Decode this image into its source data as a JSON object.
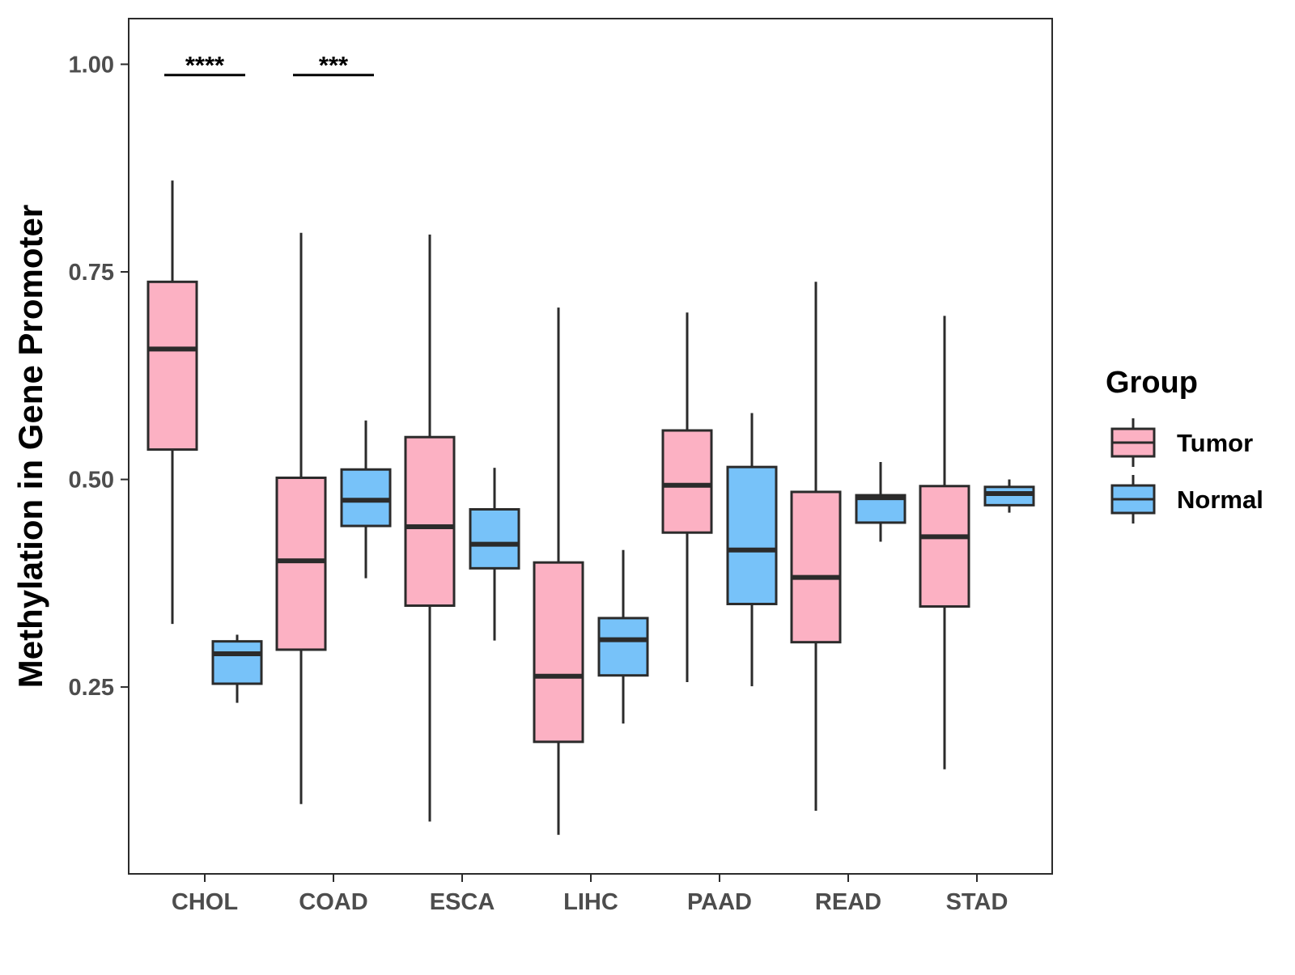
{
  "chart_data": {
    "type": "boxplot",
    "title": "",
    "xlabel": "",
    "ylabel": "Methylation in Gene Promoter",
    "ylim": [
      0.025,
      1.055
    ],
    "yticks": [
      0.25,
      0.5,
      0.75,
      1.0
    ],
    "ytick_labels": [
      "0.25",
      "0.50",
      "0.75",
      "1.00"
    ],
    "grid": false,
    "categories": [
      "CHOL",
      "COAD",
      "ESCA",
      "LIHC",
      "PAAD",
      "READ",
      "STAD"
    ],
    "legend": {
      "title": "Group",
      "placement": "right",
      "entries": [
        {
          "name": "Tumor",
          "color": "#fcb1c3"
        },
        {
          "name": "Normal",
          "color": "#77c2f9"
        }
      ]
    },
    "series": [
      {
        "name": "Tumor",
        "color": "#fcb1c3",
        "boxes": [
          {
            "category": "CHOL",
            "min": 0.326,
            "q1": 0.536,
            "median": 0.657,
            "q3": 0.738,
            "max": 0.86
          },
          {
            "category": "COAD",
            "min": 0.109,
            "q1": 0.295,
            "median": 0.402,
            "q3": 0.502,
            "max": 0.797
          },
          {
            "category": "ESCA",
            "min": 0.088,
            "q1": 0.348,
            "median": 0.443,
            "q3": 0.551,
            "max": 0.795
          },
          {
            "category": "LIHC",
            "min": 0.072,
            "q1": 0.184,
            "median": 0.263,
            "q3": 0.4,
            "max": 0.707
          },
          {
            "category": "PAAD",
            "min": 0.256,
            "q1": 0.436,
            "median": 0.493,
            "q3": 0.559,
            "max": 0.701
          },
          {
            "category": "READ",
            "min": 0.101,
            "q1": 0.304,
            "median": 0.382,
            "q3": 0.485,
            "max": 0.738
          },
          {
            "category": "STAD",
            "min": 0.151,
            "q1": 0.347,
            "median": 0.431,
            "q3": 0.492,
            "max": 0.697
          }
        ]
      },
      {
        "name": "Normal",
        "color": "#77c2f9",
        "boxes": [
          {
            "category": "CHOL",
            "min": 0.231,
            "q1": 0.254,
            "median": 0.29,
            "q3": 0.305,
            "max": 0.313
          },
          {
            "category": "COAD",
            "min": 0.381,
            "q1": 0.444,
            "median": 0.475,
            "q3": 0.512,
            "max": 0.571
          },
          {
            "category": "ESCA",
            "min": 0.306,
            "q1": 0.393,
            "median": 0.422,
            "q3": 0.464,
            "max": 0.514
          },
          {
            "category": "LIHC",
            "min": 0.206,
            "q1": 0.264,
            "median": 0.307,
            "q3": 0.333,
            "max": 0.415
          },
          {
            "category": "PAAD",
            "min": 0.251,
            "q1": 0.35,
            "median": 0.415,
            "q3": 0.515,
            "max": 0.58
          },
          {
            "category": "READ",
            "min": 0.425,
            "q1": 0.448,
            "median": 0.478,
            "q3": 0.481,
            "max": 0.521
          },
          {
            "category": "STAD",
            "min": 0.46,
            "q1": 0.469,
            "median": 0.483,
            "q3": 0.491,
            "max": 0.5
          }
        ]
      }
    ],
    "annotations": [
      {
        "category": "CHOL",
        "label": "****",
        "y": 0.987
      },
      {
        "category": "COAD",
        "label": "***",
        "y": 0.987
      }
    ]
  }
}
